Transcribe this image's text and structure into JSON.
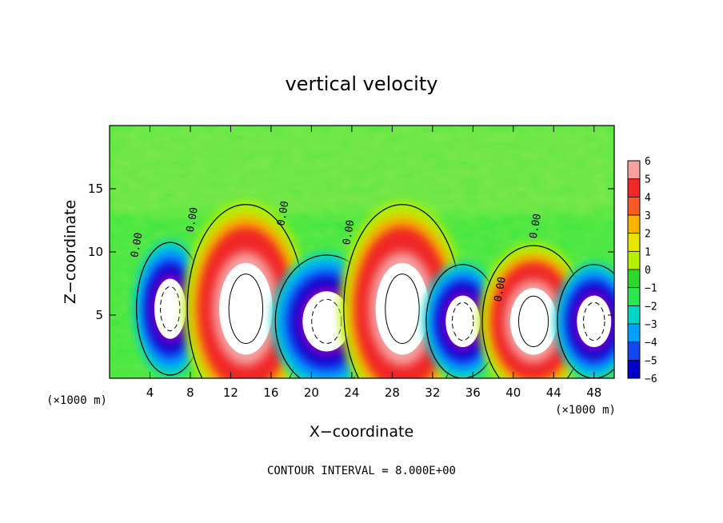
{
  "chart_data": {
    "type": "heatmap",
    "title": "vertical velocity",
    "xlabel": "X−coordinate",
    "ylabel": "Z−coordinate",
    "x_unit": "(×1000 m)",
    "xlim": [
      0,
      50
    ],
    "ylim": [
      0,
      20
    ],
    "x_ticks": [
      4,
      8,
      12,
      16,
      20,
      24,
      28,
      32,
      36,
      40,
      44,
      48
    ],
    "x_tick_labels": [
      "4",
      "8",
      "12",
      "16",
      "20",
      "24",
      "28",
      "32",
      "36",
      "40",
      "44",
      "48"
    ],
    "y_ticks": [
      5,
      10,
      15
    ],
    "y_tick_labels": [
      "5",
      "10",
      "15"
    ],
    "colorbar": {
      "levels": [
        6,
        5,
        4,
        3,
        2,
        1,
        0,
        -1,
        -2,
        -3,
        -4,
        -5,
        -6
      ],
      "level_labels": [
        "6",
        "5",
        "4",
        "3",
        "2",
        "1",
        "0",
        "−1",
        "−2",
        "−3",
        "−4",
        "−5",
        "−6"
      ],
      "colors": [
        "#f6a0a0",
        "#f02828",
        "#f85a28",
        "#f8b400",
        "#e6e600",
        "#b4f000",
        "#2ed62e",
        "#2ee650",
        "#00d6c4",
        "#00a0ff",
        "#1446f0",
        "#0000c8",
        "#7800c8"
      ]
    },
    "background_color": "#3de63d",
    "cells": [
      {
        "x_center": 6,
        "z_center": 5.5,
        "half_width": 2.3,
        "half_height": 3.5,
        "sign": "negative",
        "peak": -6
      },
      {
        "x_center": 13.5,
        "z_center": 5.5,
        "half_width": 4.0,
        "half_height": 5.5,
        "sign": "positive",
        "peak": 6
      },
      {
        "x_center": 21.5,
        "z_center": 4.5,
        "half_width": 3.5,
        "half_height": 3.5,
        "sign": "negative",
        "peak": -6
      },
      {
        "x_center": 29,
        "z_center": 5.5,
        "half_width": 4.0,
        "half_height": 5.5,
        "sign": "positive",
        "peak": 6
      },
      {
        "x_center": 35,
        "z_center": 4.5,
        "half_width": 2.5,
        "half_height": 3.0,
        "sign": "negative",
        "peak": -6
      },
      {
        "x_center": 42,
        "z_center": 4.5,
        "half_width": 3.5,
        "half_height": 4.0,
        "sign": "positive",
        "peak": 6
      },
      {
        "x_center": 48,
        "z_center": 4.5,
        "half_width": 2.5,
        "half_height": 3.0,
        "sign": "negative",
        "peak": -6
      }
    ],
    "contour_labels": [
      "0.00",
      "0.00",
      "0.00",
      "0.00",
      "0.00",
      "0.00"
    ],
    "grid": false
  },
  "footer": {
    "contour_interval": "CONTOUR INTERVAL = 8.000E+00"
  }
}
